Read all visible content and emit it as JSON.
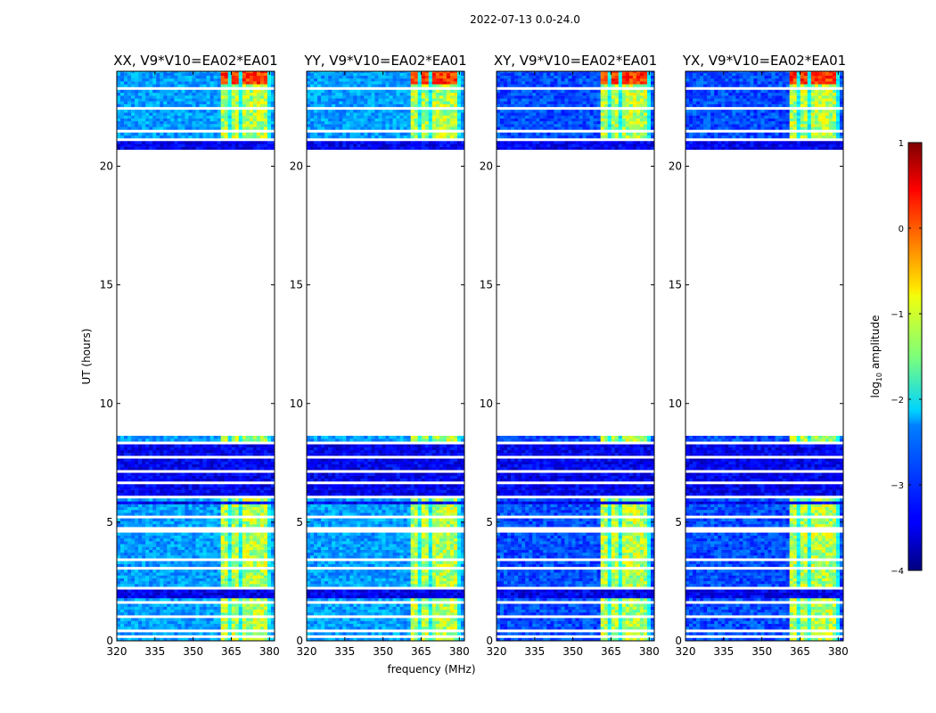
{
  "chart_data": {
    "type": "heatmap",
    "suptitle": "2022-07-13 0.0-24.0",
    "xlabel": "frequency (MHz)",
    "ylabel": "UT (hours)",
    "xlim": [
      320,
      382
    ],
    "ylim": [
      0,
      24
    ],
    "xticks": [
      "320",
      "335",
      "350",
      "365",
      "380"
    ],
    "yticks": [
      "0",
      "5",
      "10",
      "15",
      "20"
    ],
    "panels": [
      {
        "title": "XX, V9*V10=EA02*EA01",
        "pol": "XX"
      },
      {
        "title": "YY, V9*V10=EA02*EA01",
        "pol": "YY"
      },
      {
        "title": "XY, V9*V10=EA02*EA01",
        "pol": "XY"
      },
      {
        "title": "YX, V9*V10=EA02*EA01",
        "pol": "YX"
      }
    ],
    "data_time_ranges_hours": [
      [
        0,
        8.8
      ],
      [
        20.7,
        24
      ]
    ],
    "strong_signal_band_mhz": [
      360,
      380
    ],
    "colorbar": {
      "label": "log10 amplitude",
      "label_base": "log",
      "label_sub": "10",
      "label_rest": " amplitude",
      "range": [
        -4,
        1
      ],
      "ticks": [
        "1",
        "0",
        "−1",
        "−2",
        "−3",
        "−4"
      ],
      "colormap": "jet"
    }
  }
}
